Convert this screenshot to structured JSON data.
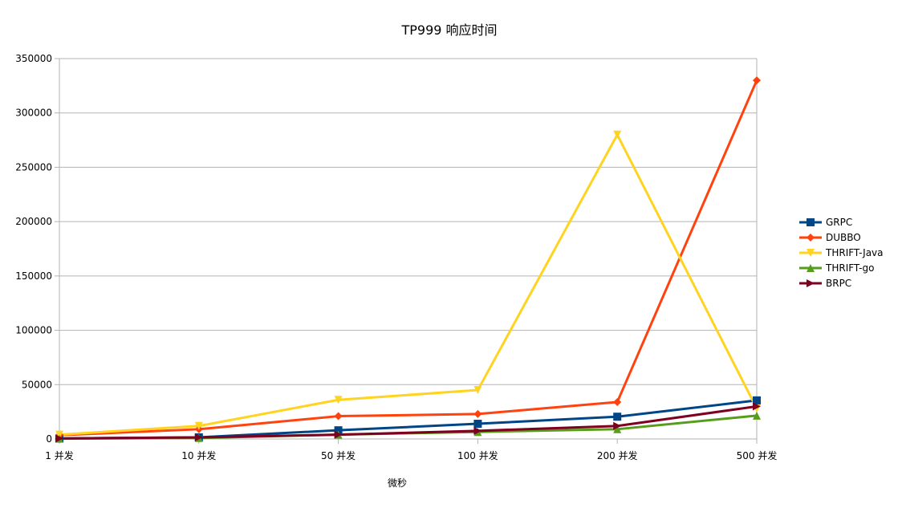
{
  "chart_data": {
    "type": "line",
    "title": "TP999 响应时间",
    "xlabel": "微秒",
    "ylabel": "",
    "categories": [
      "1 并发",
      "10 并发",
      "50 并发",
      "100 并发",
      "200 并发",
      "500 并发"
    ],
    "ylim": [
      0,
      350000
    ],
    "yticks": [
      0,
      50000,
      100000,
      150000,
      200000,
      250000,
      300000,
      350000
    ],
    "ytick_labels": [
      "0",
      "50000",
      "100000",
      "150000",
      "200000",
      "250000",
      "300000",
      "350000"
    ],
    "grid": true,
    "legend_position": "right",
    "series": [
      {
        "name": "GRPC",
        "color": "#004586",
        "marker": "square",
        "values": [
          500,
          1500,
          8000,
          14000,
          20500,
          35500
        ]
      },
      {
        "name": "DUBBO",
        "color": "#ff420e",
        "marker": "diamond",
        "values": [
          3500,
          9000,
          21000,
          23000,
          34000,
          330000
        ]
      },
      {
        "name": "THRIFT-Java",
        "color": "#ffd320",
        "marker": "triangle-down",
        "values": [
          4000,
          12000,
          36000,
          45000,
          280000,
          28000
        ]
      },
      {
        "name": "THRIFT-go",
        "color": "#579d1c",
        "marker": "triangle-up",
        "values": [
          300,
          900,
          4000,
          6500,
          9000,
          21500
        ]
      },
      {
        "name": "BRPC",
        "color": "#7e0021",
        "marker": "triangle-right",
        "values": [
          500,
          1500,
          4000,
          7500,
          12000,
          30000
        ]
      }
    ]
  }
}
